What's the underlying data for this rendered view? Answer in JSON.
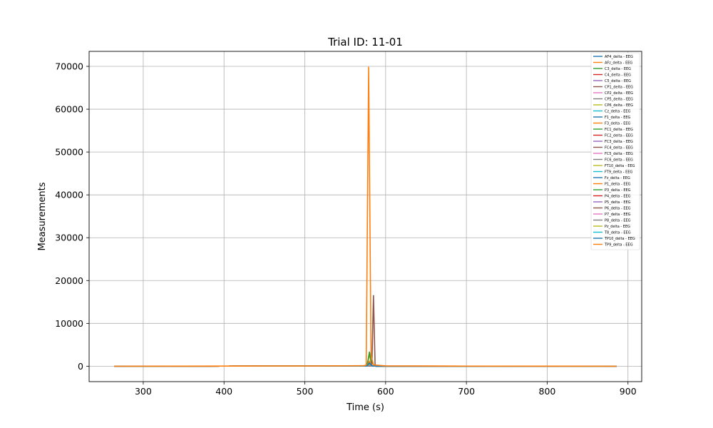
{
  "chart_data": {
    "type": "line",
    "title": "Trial ID: 11-01",
    "xlabel": "Time (s)",
    "ylabel": "Measurements",
    "xlim": [
      233,
      917
    ],
    "ylim": [
      -3600,
      73500
    ],
    "xticks": [
      300,
      400,
      500,
      600,
      700,
      800,
      900
    ],
    "yticks": [
      0,
      10000,
      20000,
      30000,
      40000,
      50000,
      60000,
      70000
    ],
    "grid": true,
    "legend_position": "top-right",
    "palette": [
      "#1f77b4",
      "#ff7f0e",
      "#2ca02c",
      "#d62728",
      "#9467bd",
      "#8c564b",
      "#e377c2",
      "#7f7f7f",
      "#bcbd22",
      "#17becf"
    ],
    "series": [
      {
        "name": "AF4_delta - EEG",
        "x": [
          264,
          400,
          500,
          577,
          580,
          583,
          590,
          700,
          886
        ],
        "y": [
          0,
          20,
          30,
          50,
          300,
          80,
          10,
          0,
          0
        ]
      },
      {
        "name": "AFz_delta - EEG",
        "x": [
          264,
          400,
          500,
          577,
          580,
          583,
          590,
          700,
          886
        ],
        "y": [
          0,
          20,
          30,
          50,
          2800,
          60,
          10,
          0,
          0
        ]
      },
      {
        "name": "C3_delta - EEG",
        "x": [
          264,
          400,
          500,
          577,
          580,
          583,
          590,
          700,
          886
        ],
        "y": [
          0,
          20,
          30,
          50,
          3300,
          50,
          10,
          0,
          0
        ]
      },
      {
        "name": "C4_delta - EEG",
        "x": [
          264,
          400,
          500,
          577,
          580,
          583,
          590,
          700,
          886
        ],
        "y": [
          0,
          20,
          30,
          50,
          400,
          60,
          10,
          0,
          0
        ]
      },
      {
        "name": "C5_delta - EEG",
        "x": [
          264,
          400,
          500,
          577,
          580,
          583,
          590,
          700,
          886
        ],
        "y": [
          0,
          20,
          30,
          50,
          500,
          80,
          10,
          0,
          0
        ]
      },
      {
        "name": "CP1_delta - EEG",
        "x": [
          264,
          400,
          500,
          580,
          583,
          585,
          587,
          700,
          886
        ],
        "y": [
          0,
          20,
          30,
          50,
          80,
          16500,
          60,
          0,
          0
        ]
      },
      {
        "name": "CP2_delta - EEG",
        "x": [
          264,
          400,
          500,
          577,
          580,
          583,
          590,
          700,
          886
        ],
        "y": [
          0,
          20,
          30,
          50,
          600,
          70,
          10,
          0,
          0
        ]
      },
      {
        "name": "CP5_delta - EEG",
        "x": [
          264,
          400,
          500,
          577,
          580,
          583,
          590,
          700,
          886
        ],
        "y": [
          0,
          20,
          30,
          50,
          700,
          70,
          10,
          0,
          0
        ]
      },
      {
        "name": "CP6_delta - EEG",
        "x": [
          264,
          400,
          500,
          577,
          580,
          583,
          590,
          700,
          886
        ],
        "y": [
          0,
          20,
          30,
          50,
          800,
          70,
          10,
          0,
          0
        ]
      },
      {
        "name": "Cz_delta - EEG",
        "x": [
          264,
          400,
          500,
          577,
          580,
          583,
          590,
          700,
          886
        ],
        "y": [
          0,
          20,
          30,
          50,
          900,
          70,
          10,
          0,
          0
        ]
      },
      {
        "name": "F1_delta - EEG",
        "x": [
          264,
          400,
          500,
          577,
          580,
          583,
          590,
          700,
          886
        ],
        "y": [
          0,
          20,
          30,
          50,
          1000,
          70,
          10,
          0,
          0
        ]
      },
      {
        "name": "F3_delta - EEG",
        "x": [
          264,
          400,
          500,
          577,
          580,
          583,
          590,
          700,
          886
        ],
        "y": [
          0,
          20,
          30,
          50,
          1200,
          70,
          10,
          0,
          0
        ]
      },
      {
        "name": "FC1_delta - EEG",
        "x": [
          264,
          400,
          500,
          577,
          580,
          583,
          590,
          700,
          886
        ],
        "y": [
          0,
          20,
          30,
          50,
          700,
          70,
          10,
          0,
          0
        ]
      },
      {
        "name": "FC2_delta - EEG",
        "x": [
          264,
          400,
          500,
          577,
          580,
          583,
          590,
          700,
          886
        ],
        "y": [
          0,
          20,
          30,
          50,
          600,
          70,
          10,
          0,
          0
        ]
      },
      {
        "name": "FC3_delta - EEG",
        "x": [
          264,
          400,
          500,
          577,
          580,
          583,
          590,
          700,
          886
        ],
        "y": [
          0,
          20,
          30,
          50,
          500,
          70,
          10,
          0,
          0
        ]
      },
      {
        "name": "FC4_delta - EEG",
        "x": [
          264,
          400,
          500,
          577,
          580,
          583,
          590,
          700,
          886
        ],
        "y": [
          0,
          20,
          30,
          50,
          400,
          70,
          10,
          0,
          0
        ]
      },
      {
        "name": "FC5_delta - EEG",
        "x": [
          264,
          400,
          500,
          577,
          580,
          583,
          590,
          700,
          886
        ],
        "y": [
          0,
          20,
          30,
          50,
          300,
          70,
          10,
          0,
          0
        ]
      },
      {
        "name": "FC6_delta - EEG",
        "x": [
          264,
          400,
          500,
          577,
          580,
          583,
          590,
          700,
          886
        ],
        "y": [
          0,
          20,
          30,
          50,
          300,
          70,
          10,
          0,
          0
        ]
      },
      {
        "name": "FT10_delta - EEG",
        "x": [
          264,
          400,
          500,
          577,
          580,
          583,
          590,
          700,
          886
        ],
        "y": [
          0,
          20,
          30,
          50,
          400,
          70,
          10,
          0,
          0
        ]
      },
      {
        "name": "FT9_delta - EEG",
        "x": [
          264,
          400,
          500,
          577,
          580,
          583,
          590,
          700,
          886
        ],
        "y": [
          0,
          20,
          30,
          50,
          500,
          70,
          10,
          0,
          0
        ]
      },
      {
        "name": "Fz_delta - EEG",
        "x": [
          264,
          400,
          500,
          577,
          580,
          583,
          590,
          700,
          886
        ],
        "y": [
          0,
          20,
          30,
          50,
          600,
          70,
          10,
          0,
          0
        ]
      },
      {
        "name": "P1_delta - EEG",
        "x": [
          264,
          400,
          500,
          577,
          580,
          583,
          590,
          700,
          886
        ],
        "y": [
          0,
          20,
          30,
          50,
          800,
          70,
          10,
          0,
          0
        ]
      },
      {
        "name": "P3_delta - EEG",
        "x": [
          264,
          400,
          500,
          577,
          580,
          583,
          590,
          700,
          886
        ],
        "y": [
          0,
          20,
          30,
          50,
          600,
          70,
          10,
          0,
          0
        ]
      },
      {
        "name": "P4_delta - EEG",
        "x": [
          264,
          400,
          500,
          577,
          580,
          583,
          590,
          700,
          886
        ],
        "y": [
          0,
          20,
          30,
          50,
          500,
          70,
          10,
          0,
          0
        ]
      },
      {
        "name": "P5_delta - EEG",
        "x": [
          264,
          400,
          500,
          577,
          580,
          583,
          590,
          700,
          886
        ],
        "y": [
          0,
          20,
          30,
          50,
          400,
          70,
          10,
          0,
          0
        ]
      },
      {
        "name": "P6_delta - EEG",
        "x": [
          264,
          400,
          500,
          577,
          580,
          583,
          590,
          700,
          886
        ],
        "y": [
          0,
          20,
          30,
          50,
          300,
          70,
          10,
          0,
          0
        ]
      },
      {
        "name": "P7_delta - EEG",
        "x": [
          264,
          400,
          500,
          577,
          580,
          583,
          590,
          700,
          886
        ],
        "y": [
          0,
          20,
          30,
          50,
          300,
          70,
          10,
          0,
          0
        ]
      },
      {
        "name": "P8_delta - EEG",
        "x": [
          264,
          400,
          500,
          577,
          580,
          583,
          590,
          700,
          886
        ],
        "y": [
          0,
          20,
          30,
          50,
          400,
          70,
          10,
          0,
          0
        ]
      },
      {
        "name": "Pz_delta - EEG",
        "x": [
          264,
          400,
          500,
          577,
          580,
          583,
          590,
          700,
          886
        ],
        "y": [
          0,
          20,
          30,
          50,
          500,
          70,
          10,
          0,
          0
        ]
      },
      {
        "name": "T8_delta - EEG",
        "x": [
          264,
          400,
          500,
          577,
          580,
          583,
          590,
          700,
          886
        ],
        "y": [
          0,
          20,
          30,
          50,
          700,
          70,
          10,
          0,
          0
        ]
      },
      {
        "name": "TP10_delta - EEG",
        "x": [
          264,
          400,
          500,
          577,
          580,
          583,
          590,
          700,
          886
        ],
        "y": [
          0,
          20,
          30,
          50,
          800,
          70,
          10,
          0,
          0
        ]
      },
      {
        "name": "TP9_delta - EEG",
        "x": [
          264,
          400,
          500,
          573,
          576,
          579,
          582,
          585,
          600,
          700,
          800,
          886
        ],
        "y": [
          0,
          30,
          60,
          120,
          250,
          69800,
          2500,
          300,
          80,
          20,
          10,
          0
        ]
      }
    ]
  }
}
